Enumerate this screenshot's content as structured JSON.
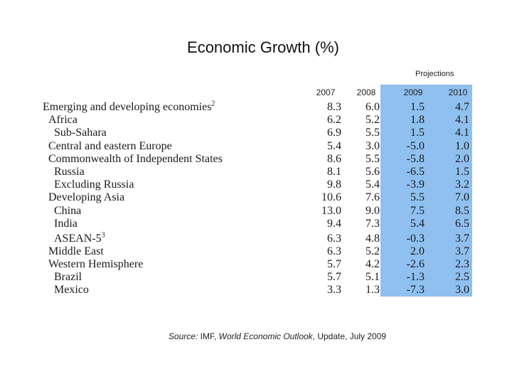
{
  "title": "Economic Growth (%)",
  "projections_label": "Projections",
  "years": [
    "2007",
    "2008",
    "2009",
    "2010"
  ],
  "rows": [
    {
      "label": "Emerging and developing economies",
      "sup": "2",
      "indent": 0,
      "v": [
        "8.3",
        "6.0",
        "1.5",
        "4.7"
      ]
    },
    {
      "label": "Africa",
      "sup": "",
      "indent": 1,
      "v": [
        "6.2",
        "5.2",
        "1.8",
        "4.1"
      ]
    },
    {
      "label": "Sub-Sahara",
      "sup": "",
      "indent": 2,
      "v": [
        "6.9",
        "5.5",
        "1.5",
        "4.1"
      ]
    },
    {
      "label": "Central and eastern Europe",
      "sup": "",
      "indent": 1,
      "v": [
        "5.4",
        "3.0",
        "-5.0",
        "1.0"
      ]
    },
    {
      "label": "Commonwealth of Independent States",
      "sup": "",
      "indent": 1,
      "v": [
        "8.6",
        "5.5",
        "-5.8",
        "2.0"
      ]
    },
    {
      "label": "Russia",
      "sup": "",
      "indent": 2,
      "v": [
        "8.1",
        "5.6",
        "-6.5",
        "1.5"
      ]
    },
    {
      "label": "Excluding Russia",
      "sup": "",
      "indent": 2,
      "v": [
        "9.8",
        "5.4",
        "-3.9",
        "3.2"
      ]
    },
    {
      "label": "Developing Asia",
      "sup": "",
      "indent": 1,
      "v": [
        "10.6",
        "7.6",
        "5.5",
        "7.0"
      ]
    },
    {
      "label": "China",
      "sup": "",
      "indent": 2,
      "v": [
        "13.0",
        "9.0",
        "7.5",
        "8.5"
      ]
    },
    {
      "label": "India",
      "sup": "",
      "indent": 2,
      "v": [
        "9.4",
        "7.3",
        "5.4",
        "6.5"
      ]
    },
    {
      "label": "ASEAN-5",
      "sup": "3",
      "indent": 2,
      "v": [
        "6.3",
        "4.8",
        "-0.3",
        "3.7"
      ]
    },
    {
      "label": "Middle East",
      "sup": "",
      "indent": 1,
      "v": [
        "6.3",
        "5.2",
        "2.0",
        "3.7"
      ]
    },
    {
      "label": "Western Hemisphere",
      "sup": "",
      "indent": 1,
      "v": [
        "5.7",
        "4.2",
        "-2.6",
        "2.3"
      ]
    },
    {
      "label": "Brazil",
      "sup": "",
      "indent": 2,
      "v": [
        "5.7",
        "5.1",
        "-1.3",
        "2.5"
      ]
    },
    {
      "label": "Mexico",
      "sup": "",
      "indent": 2,
      "v": [
        "3.3",
        "1.3",
        "-7.3",
        "3.0"
      ]
    }
  ],
  "source": {
    "prefix": "Source: ",
    "org": "IMF, ",
    "publication": "World Economic Outlook",
    "suffix": ", Update, July 2009"
  }
}
